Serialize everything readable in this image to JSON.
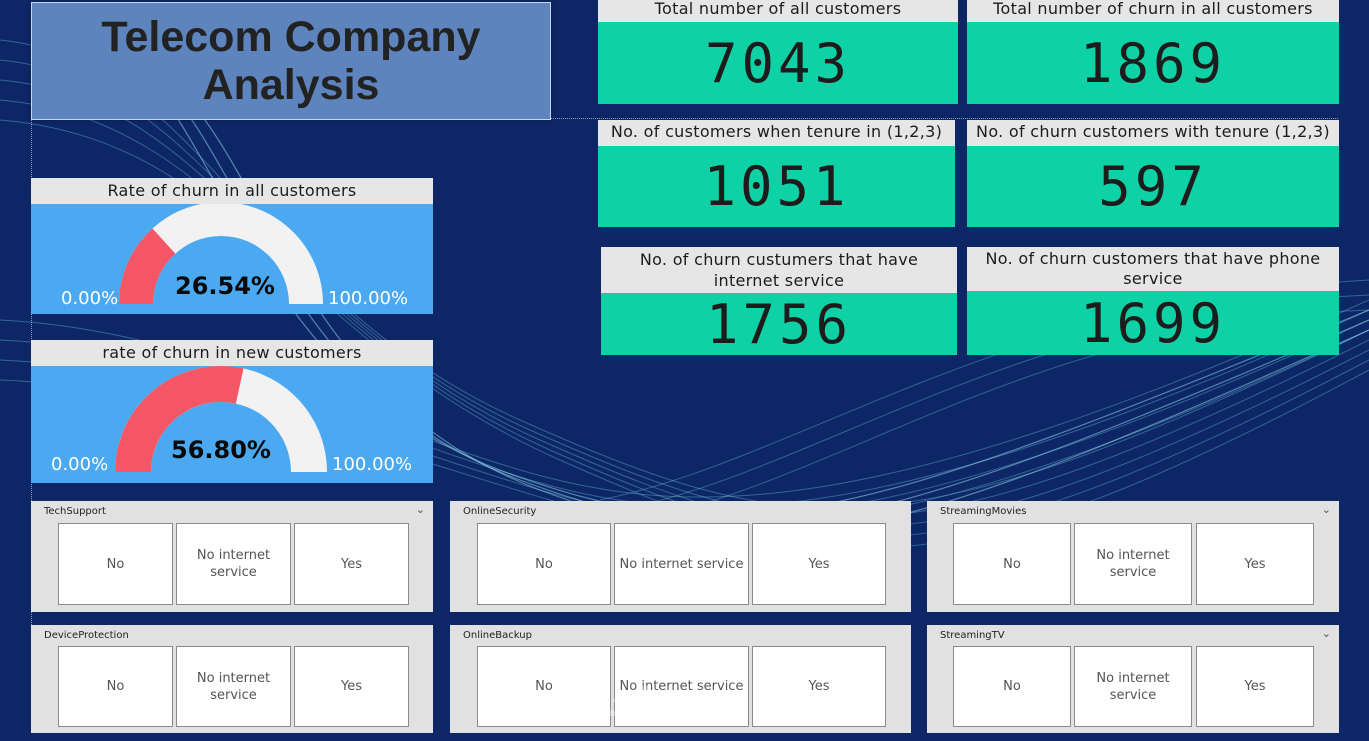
{
  "title": {
    "line1": "Telecom Company",
    "line2": "Analysis"
  },
  "gauges": [
    {
      "title": "Rate of churn in all customers",
      "value_text": "26.54%",
      "value": 0.2654,
      "min": "0.00%",
      "max": "100.00%"
    },
    {
      "title": "rate of churn in new customers",
      "value_text": "56.80%",
      "value": 0.568,
      "min": "0.00%",
      "max": "100.00%"
    }
  ],
  "kpis": [
    {
      "label": "Total number of all customers",
      "value": "7043"
    },
    {
      "label": "Total number of churn in all customers",
      "value": "1869"
    },
    {
      "label": "No. of customers when tenure in (1,2,3)",
      "value": "1051"
    },
    {
      "label": "No. of churn customers with tenure (1,2,3)",
      "value": "597"
    },
    {
      "label": "No. of churn custumers that have internet service",
      "value": "1756"
    },
    {
      "label": "No. of churn customers that have phone service",
      "value": "1699"
    }
  ],
  "slicers": [
    {
      "title": "TechSupport",
      "options": [
        "No",
        "No internet service",
        "Yes"
      ]
    },
    {
      "title": "OnlineSecurity",
      "options": [
        "No",
        "No internet service",
        "Yes"
      ]
    },
    {
      "title": "StreamingMovies",
      "options": [
        "No",
        "No internet service",
        "Yes"
      ]
    },
    {
      "title": "DeviceProtection",
      "options": [
        "No",
        "No internet service",
        "Yes"
      ]
    },
    {
      "title": "OnlineBackup",
      "options": [
        "No",
        "No internet service",
        "Yes"
      ]
    },
    {
      "title": "StreamingTV",
      "options": [
        "No",
        "No internet service",
        "Yes"
      ]
    }
  ],
  "watermark": "خمسات",
  "colors": {
    "background": "#0d2766",
    "kpi": "#0fd1a6",
    "gauge_panel": "#4aa9f0",
    "gauge_fill": "#f65766",
    "gauge_track": "#f2f2f2"
  }
}
